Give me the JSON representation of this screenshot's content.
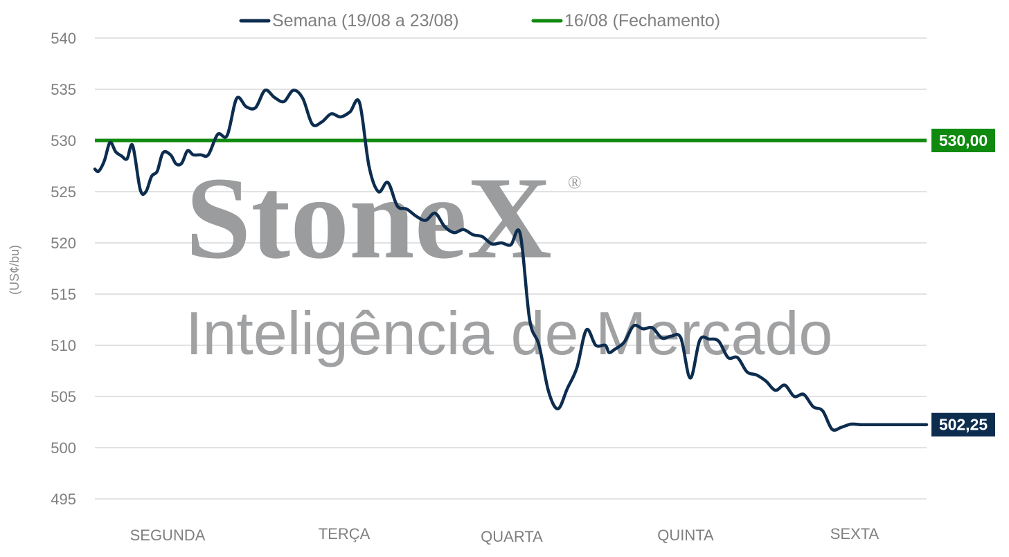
{
  "chart_data": {
    "type": "line",
    "ylabel": "(US¢/bu)",
    "ylim": [
      495,
      540
    ],
    "yticks": [
      495,
      500,
      505,
      510,
      515,
      520,
      525,
      530,
      535,
      540
    ],
    "categories": [
      "SEGUNDA",
      "TERÇA",
      "QUARTA",
      "QUINTA",
      "SEXTA"
    ],
    "grid": true,
    "legend_position": "top",
    "series": [
      {
        "name": "Semana (19/08 a 23/08)",
        "color": "#0d2d4f",
        "end_label": "502,25",
        "x": [
          0,
          0.02,
          0.05,
          0.08,
          0.11,
          0.14,
          0.17,
          0.2,
          0.24,
          0.27,
          0.3,
          0.33,
          0.36,
          0.4,
          0.43,
          0.46,
          0.49,
          0.52,
          0.56,
          0.6,
          0.65,
          0.7,
          0.75,
          0.8,
          0.85,
          0.9,
          0.95,
          1.0,
          1.05,
          1.1,
          1.15,
          1.2,
          1.25,
          1.3,
          1.35,
          1.4,
          1.45,
          1.5,
          1.55,
          1.6,
          1.65,
          1.7,
          1.75,
          1.8,
          1.85,
          1.9,
          1.95,
          2.0,
          2.05,
          2.1,
          2.15,
          2.2,
          2.25,
          2.3,
          2.35,
          2.4,
          2.45,
          2.5,
          2.55,
          2.6,
          2.65,
          2.7,
          2.72,
          2.75,
          2.8,
          2.85,
          2.9,
          2.95,
          3.0,
          3.05,
          3.1,
          3.15,
          3.2,
          3.25,
          3.3,
          3.35,
          3.4,
          3.45,
          3.5,
          3.55,
          3.6,
          3.65,
          3.7,
          3.75,
          3.8,
          3.85,
          3.9,
          3.95,
          4.0,
          4.05,
          4.1,
          4.15,
          4.2,
          4.25,
          4.3,
          4.35,
          4.4
        ],
        "values": [
          527.2,
          527.0,
          528.0,
          529.8,
          528.9,
          528.5,
          528.2,
          529.5,
          525.2,
          525.0,
          526.5,
          527.0,
          528.8,
          528.6,
          527.7,
          527.8,
          529.0,
          528.6,
          528.6,
          528.6,
          530.6,
          530.5,
          534.1,
          533.3,
          533.2,
          534.9,
          534.2,
          533.8,
          534.9,
          534.1,
          531.6,
          531.8,
          532.6,
          532.3,
          532.8,
          533.7,
          527.5,
          525.0,
          525.9,
          523.6,
          523.3,
          522.6,
          522.2,
          522.9,
          521.6,
          521.0,
          521.3,
          520.8,
          520.6,
          519.9,
          520.0,
          519.8,
          520.9,
          512.5,
          510.0,
          505.5,
          503.8,
          505.8,
          507.8,
          511.5,
          510.0,
          510.0,
          509.3,
          509.6,
          510.3,
          511.9,
          511.6,
          511.7,
          510.7,
          510.9,
          510.7,
          506.8,
          510.5,
          510.6,
          510.4,
          508.8,
          508.8,
          507.4,
          507.1,
          506.5,
          505.6,
          506.1,
          505.0,
          505.2,
          504.0,
          503.6,
          501.8,
          502.0,
          502.3,
          502.25,
          502.25,
          502.25,
          502.25,
          502.25,
          502.25,
          502.25,
          502.25
        ]
      },
      {
        "name": "16/08 (Fechamento)",
        "color": "#0f8a0f",
        "end_label": "530,00",
        "constant": 530.0
      }
    ]
  },
  "watermark": {
    "brand": "StoneX",
    "registered": "®",
    "subtitle": "Inteligência de Mercado"
  }
}
